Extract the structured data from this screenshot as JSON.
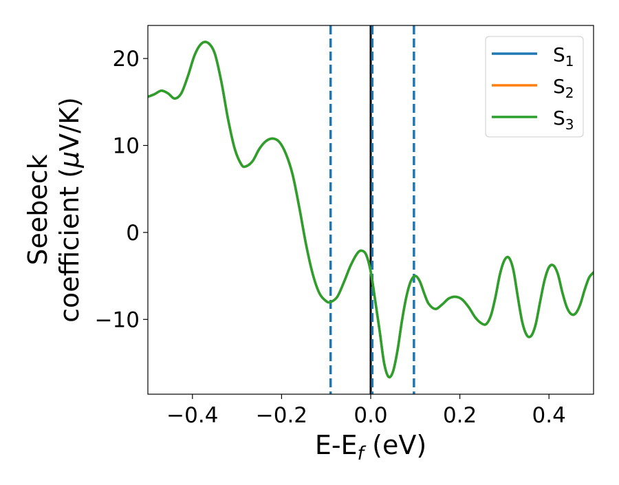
{
  "chart_data": {
    "type": "line",
    "xlabel_main": "E-E",
    "xlabel_sub": "f",
    "xlabel_unit": " (eV)",
    "ylabel_line1": "Seebeck",
    "ylabel_line2_pre": "coefficient  (",
    "ylabel_mu": "μ",
    "ylabel_line2_post": "V/K)",
    "xlim": [
      -0.5,
      0.5
    ],
    "ylim": [
      -18.6,
      23.8
    ],
    "xticks": [
      -0.4,
      -0.2,
      0.0,
      0.2,
      0.4
    ],
    "xtick_labels": [
      "−0.4",
      "−0.2",
      "0.0",
      "0.2",
      "0.4"
    ],
    "yticks": [
      20,
      10,
      0,
      -10
    ],
    "ytick_labels": [
      "20",
      "10",
      "0",
      "−10"
    ],
    "legend_placement": "top-right",
    "series": [
      {
        "name_main": "S",
        "name_sub": "1",
        "color": "#1f77b4"
      },
      {
        "name_main": "S",
        "name_sub": "2",
        "color": "#ff7f0e"
      },
      {
        "name_main": "S",
        "name_sub": "3",
        "color": "#2ca02c"
      }
    ],
    "curve_points": [
      [
        -0.5,
        15.6
      ],
      [
        -0.485,
        15.9
      ],
      [
        -0.47,
        16.3
      ],
      [
        -0.455,
        16.0
      ],
      [
        -0.44,
        15.4
      ],
      [
        -0.425,
        16.0
      ],
      [
        -0.41,
        18.0
      ],
      [
        -0.395,
        20.4
      ],
      [
        -0.38,
        21.7
      ],
      [
        -0.365,
        21.8
      ],
      [
        -0.35,
        20.6
      ],
      [
        -0.335,
        17.3
      ],
      [
        -0.32,
        13.0
      ],
      [
        -0.305,
        9.6
      ],
      [
        -0.29,
        7.8
      ],
      [
        -0.28,
        7.6
      ],
      [
        -0.265,
        8.2
      ],
      [
        -0.25,
        9.6
      ],
      [
        -0.235,
        10.5
      ],
      [
        -0.22,
        10.8
      ],
      [
        -0.205,
        10.4
      ],
      [
        -0.19,
        9.0
      ],
      [
        -0.175,
        6.6
      ],
      [
        -0.16,
        2.8
      ],
      [
        -0.145,
        -1.4
      ],
      [
        -0.13,
        -4.8
      ],
      [
        -0.115,
        -7.0
      ],
      [
        -0.1,
        -7.9
      ],
      [
        -0.09,
        -8.0
      ],
      [
        -0.075,
        -7.4
      ],
      [
        -0.06,
        -5.7
      ],
      [
        -0.045,
        -3.8
      ],
      [
        -0.03,
        -2.4
      ],
      [
        -0.02,
        -2.1
      ],
      [
        -0.01,
        -2.6
      ],
      [
        0.0,
        -4.5
      ],
      [
        0.01,
        -7.8
      ],
      [
        0.02,
        -11.3
      ],
      [
        0.03,
        -15.0
      ],
      [
        0.04,
        -16.6
      ],
      [
        0.05,
        -16.0
      ],
      [
        0.06,
        -13.6
      ],
      [
        0.07,
        -10.2
      ],
      [
        0.08,
        -7.4
      ],
      [
        0.09,
        -5.6
      ],
      [
        0.1,
        -5.0
      ],
      [
        0.11,
        -5.6
      ],
      [
        0.12,
        -7.0
      ],
      [
        0.13,
        -8.2
      ],
      [
        0.145,
        -8.8
      ],
      [
        0.16,
        -8.3
      ],
      [
        0.175,
        -7.6
      ],
      [
        0.19,
        -7.4
      ],
      [
        0.205,
        -7.7
      ],
      [
        0.22,
        -8.6
      ],
      [
        0.235,
        -9.8
      ],
      [
        0.25,
        -10.5
      ],
      [
        0.26,
        -10.5
      ],
      [
        0.27,
        -9.5
      ],
      [
        0.28,
        -7.4
      ],
      [
        0.29,
        -4.8
      ],
      [
        0.3,
        -3.2
      ],
      [
        0.31,
        -2.9
      ],
      [
        0.32,
        -4.3
      ],
      [
        0.33,
        -7.4
      ],
      [
        0.34,
        -10.3
      ],
      [
        0.35,
        -11.8
      ],
      [
        0.36,
        -11.9
      ],
      [
        0.37,
        -10.6
      ],
      [
        0.38,
        -8.0
      ],
      [
        0.39,
        -5.5
      ],
      [
        0.4,
        -4.0
      ],
      [
        0.41,
        -3.8
      ],
      [
        0.42,
        -4.8
      ],
      [
        0.43,
        -6.9
      ],
      [
        0.44,
        -8.6
      ],
      [
        0.45,
        -9.4
      ],
      [
        0.46,
        -9.3
      ],
      [
        0.47,
        -8.3
      ],
      [
        0.48,
        -6.6
      ],
      [
        0.49,
        -5.2
      ],
      [
        0.5,
        -4.6
      ]
    ],
    "vlines": [
      {
        "x": -0.09,
        "style": "dashed",
        "color": "#1f77b4"
      },
      {
        "x": 0.0,
        "style": "solid",
        "color": "#000000"
      },
      {
        "x": 0.0035,
        "style": "dashed",
        "color": "#1f77b4"
      },
      {
        "x": 0.097,
        "style": "dashed",
        "color": "#1f77b4"
      }
    ]
  }
}
